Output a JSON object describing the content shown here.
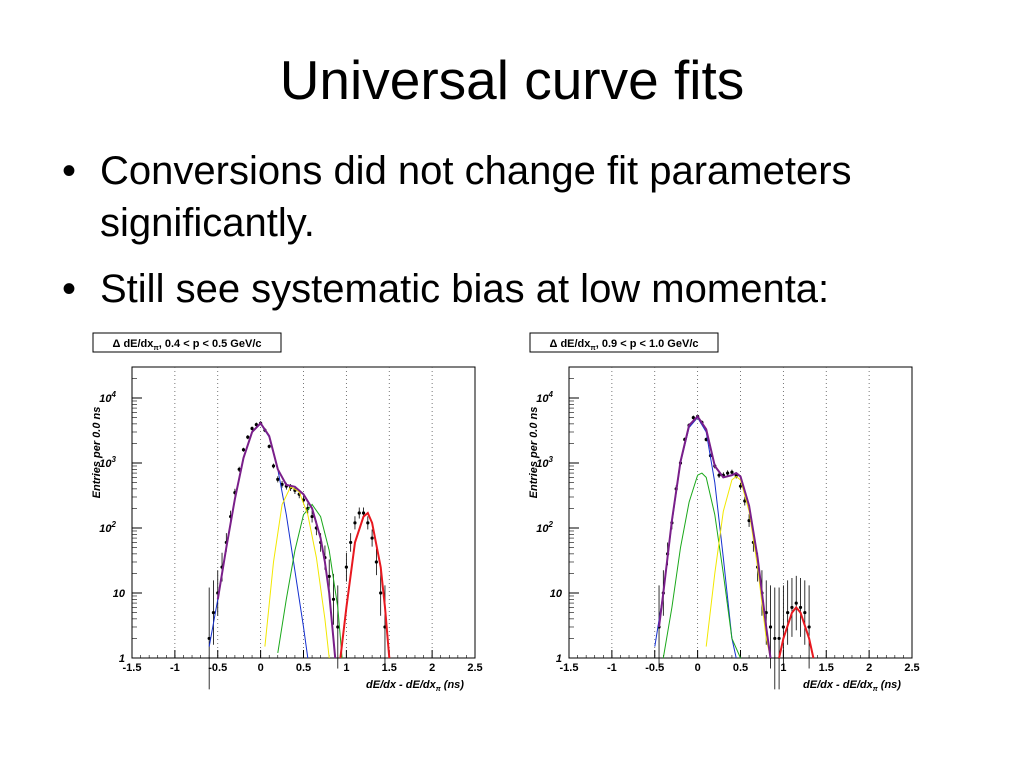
{
  "slide": {
    "title": "Universal curve fits",
    "bullets": [
      "Conversions did not change fit parameters significantly.",
      "Still see systematic bias at low momenta:"
    ]
  },
  "chart_data": [
    {
      "type": "scatter",
      "title": "Δ dE/dxπ, 0.4 < p < 0.5 GeV/c",
      "title_parts": {
        "prefix": "Δ dE/dx",
        "sub": "π",
        "suffix": ", 0.4 < p < 0.5 GeV/c"
      },
      "xlabel": "dE/dx - dE/dxπ  (ns)",
      "xlabel_parts": {
        "prefix": "dE/dx - dE/dx",
        "sub": "π",
        "suffix": "  (ns)"
      },
      "ylabel": "Entries per 0.0 ns",
      "xlim": [
        -1.5,
        2.5
      ],
      "ylim": [
        1,
        30000
      ],
      "y_scale": "log",
      "grid": "vertical-dashed",
      "x_ticks": [
        "-1.5",
        "-1",
        "-0.5",
        "0",
        "0.5",
        "1",
        "1.5",
        "2",
        "2.5"
      ],
      "y_ticks": [
        "1",
        "10",
        "10^2",
        "10^3",
        "10^4"
      ],
      "colors": {
        "total": "#e8181f",
        "pion": "#1530d0",
        "electron": "#1aa81a",
        "kaon": "#f2e800",
        "proton": "#e8181f",
        "overall": "#7a1f8a",
        "data": "#000000"
      },
      "series": [
        {
          "name": "",
          "kind": "data",
          "x": [
            -0.6,
            -0.55,
            -0.5,
            -0.45,
            -0.4,
            -0.35,
            -0.3,
            -0.25,
            -0.2,
            -0.15,
            -0.1,
            -0.05,
            0,
            0.05,
            0.1,
            0.15,
            0.2,
            0.25,
            0.3,
            0.35,
            0.4,
            0.45,
            0.5,
            0.55,
            0.6,
            0.65,
            0.7,
            0.75,
            0.8,
            0.85,
            0.9,
            1.0,
            1.05,
            1.1,
            1.15,
            1.2,
            1.25,
            1.3,
            1.35,
            1.4,
            1.45
          ],
          "y": [
            2,
            5,
            10,
            25,
            60,
            150,
            350,
            800,
            1600,
            2500,
            3400,
            3900,
            4100,
            3200,
            1800,
            900,
            560,
            470,
            440,
            420,
            380,
            330,
            270,
            200,
            150,
            100,
            60,
            35,
            18,
            8,
            3,
            25,
            60,
            120,
            170,
            170,
            120,
            70,
            30,
            10,
            3
          ]
        },
        {
          "name": "",
          "kind": "pion",
          "x": [
            -0.6,
            -0.5,
            -0.4,
            -0.3,
            -0.2,
            -0.1,
            0,
            0.1,
            0.2,
            0.3,
            0.4,
            0.5,
            0.55
          ],
          "y": [
            1.5,
            8,
            50,
            280,
            1200,
            3000,
            4000,
            2500,
            800,
            160,
            22,
            3,
            1
          ]
        },
        {
          "name": "",
          "kind": "electron",
          "x": [
            0.2,
            0.3,
            0.4,
            0.5,
            0.6,
            0.7,
            0.8,
            0.9,
            0.95
          ],
          "y": [
            1.2,
            8,
            45,
            160,
            230,
            150,
            45,
            6,
            1
          ]
        },
        {
          "name": "",
          "kind": "kaon",
          "x": [
            0.05,
            0.15,
            0.25,
            0.35,
            0.45,
            0.55,
            0.65,
            0.75,
            0.8
          ],
          "y": [
            1.5,
            30,
            230,
            430,
            360,
            160,
            35,
            4,
            1
          ]
        },
        {
          "name": "",
          "kind": "proton",
          "x": [
            0.93,
            1.0,
            1.1,
            1.2,
            1.25,
            1.3,
            1.4,
            1.45,
            1.5
          ],
          "y": [
            1,
            6,
            60,
            150,
            170,
            120,
            25,
            6,
            1
          ]
        },
        {
          "name": "",
          "kind": "overall",
          "x": [
            -0.5,
            -0.4,
            -0.3,
            -0.2,
            -0.1,
            0,
            0.1,
            0.2,
            0.3,
            0.4,
            0.5,
            0.6,
            0.7,
            0.75,
            0.8,
            0.87
          ],
          "y": [
            8,
            50,
            280,
            1200,
            3000,
            4100,
            2600,
            800,
            460,
            430,
            330,
            200,
            70,
            30,
            10,
            1
          ]
        }
      ]
    },
    {
      "type": "scatter",
      "title": "Δ dE/dxπ, 0.9 < p < 1.0 GeV/c",
      "title_parts": {
        "prefix": "Δ dE/dx",
        "sub": "π",
        "suffix": ", 0.9 < p < 1.0 GeV/c"
      },
      "xlabel": "dE/dx - dE/dxπ  (ns)",
      "xlabel_parts": {
        "prefix": "dE/dx - dE/dx",
        "sub": "π",
        "suffix": "  (ns)"
      },
      "ylabel": "Entries per 0.0 ns",
      "xlim": [
        -1.5,
        2.5
      ],
      "ylim": [
        1,
        30000
      ],
      "y_scale": "log",
      "grid": "vertical-dashed",
      "x_ticks": [
        "-1.5",
        "-1",
        "-0.5",
        "0",
        "0.5",
        "1",
        "1.5",
        "2",
        "2.5"
      ],
      "y_ticks": [
        "1",
        "10",
        "10^2",
        "10^3",
        "10^4"
      ],
      "colors": {
        "total": "#e8181f",
        "pion": "#1530d0",
        "electron": "#1aa81a",
        "kaon": "#f2e800",
        "proton": "#e8181f",
        "overall": "#7a1f8a",
        "data": "#000000"
      },
      "series": [
        {
          "name": "",
          "kind": "data",
          "x": [
            -0.45,
            -0.4,
            -0.35,
            -0.3,
            -0.25,
            -0.2,
            -0.15,
            -0.1,
            -0.05,
            0,
            0.05,
            0.1,
            0.15,
            0.2,
            0.25,
            0.3,
            0.35,
            0.4,
            0.45,
            0.5,
            0.55,
            0.6,
            0.65,
            0.7,
            0.75,
            0.8,
            0.85,
            0.9,
            0.95,
            1.0,
            1.05,
            1.1,
            1.15,
            1.2,
            1.25,
            1.3
          ],
          "y": [
            3,
            10,
            40,
            120,
            400,
            1000,
            2300,
            3800,
            5000,
            5200,
            4200,
            2300,
            1300,
            900,
            650,
            650,
            700,
            720,
            640,
            440,
            260,
            130,
            60,
            25,
            10,
            5,
            3,
            2,
            2,
            3,
            5,
            6,
            7,
            6,
            5,
            3
          ]
        },
        {
          "name": "",
          "kind": "pion",
          "x": [
            -0.5,
            -0.4,
            -0.3,
            -0.2,
            -0.1,
            0,
            0.1,
            0.2,
            0.3,
            0.4,
            0.45
          ],
          "y": [
            1.5,
            10,
            120,
            1000,
            3500,
            5000,
            3000,
            500,
            35,
            2,
            1
          ]
        },
        {
          "name": "",
          "kind": "electron",
          "x": [
            -0.4,
            -0.3,
            -0.2,
            -0.1,
            0,
            0.05,
            0.1,
            0.2,
            0.3,
            0.4,
            0.5
          ],
          "y": [
            1,
            6,
            50,
            250,
            650,
            700,
            600,
            160,
            20,
            2,
            1
          ]
        },
        {
          "name": "",
          "kind": "kaon",
          "x": [
            0.1,
            0.2,
            0.3,
            0.4,
            0.45,
            0.5,
            0.6,
            0.7,
            0.8,
            0.85
          ],
          "y": [
            1.5,
            20,
            180,
            550,
            620,
            550,
            180,
            25,
            2,
            1
          ]
        },
        {
          "name": "",
          "kind": "proton",
          "x": [
            0.95,
            1.0,
            1.1,
            1.15,
            1.2,
            1.3,
            1.35
          ],
          "y": [
            1,
            2,
            5,
            6,
            5,
            2,
            1
          ]
        },
        {
          "name": "",
          "kind": "overall",
          "x": [
            -0.45,
            -0.4,
            -0.3,
            -0.2,
            -0.1,
            0,
            0.1,
            0.2,
            0.3,
            0.4,
            0.45,
            0.5,
            0.6,
            0.7,
            0.8,
            0.85
          ],
          "y": [
            3,
            10,
            130,
            1050,
            3800,
            5200,
            3300,
            900,
            600,
            650,
            700,
            620,
            220,
            35,
            3,
            1
          ]
        }
      ]
    }
  ]
}
